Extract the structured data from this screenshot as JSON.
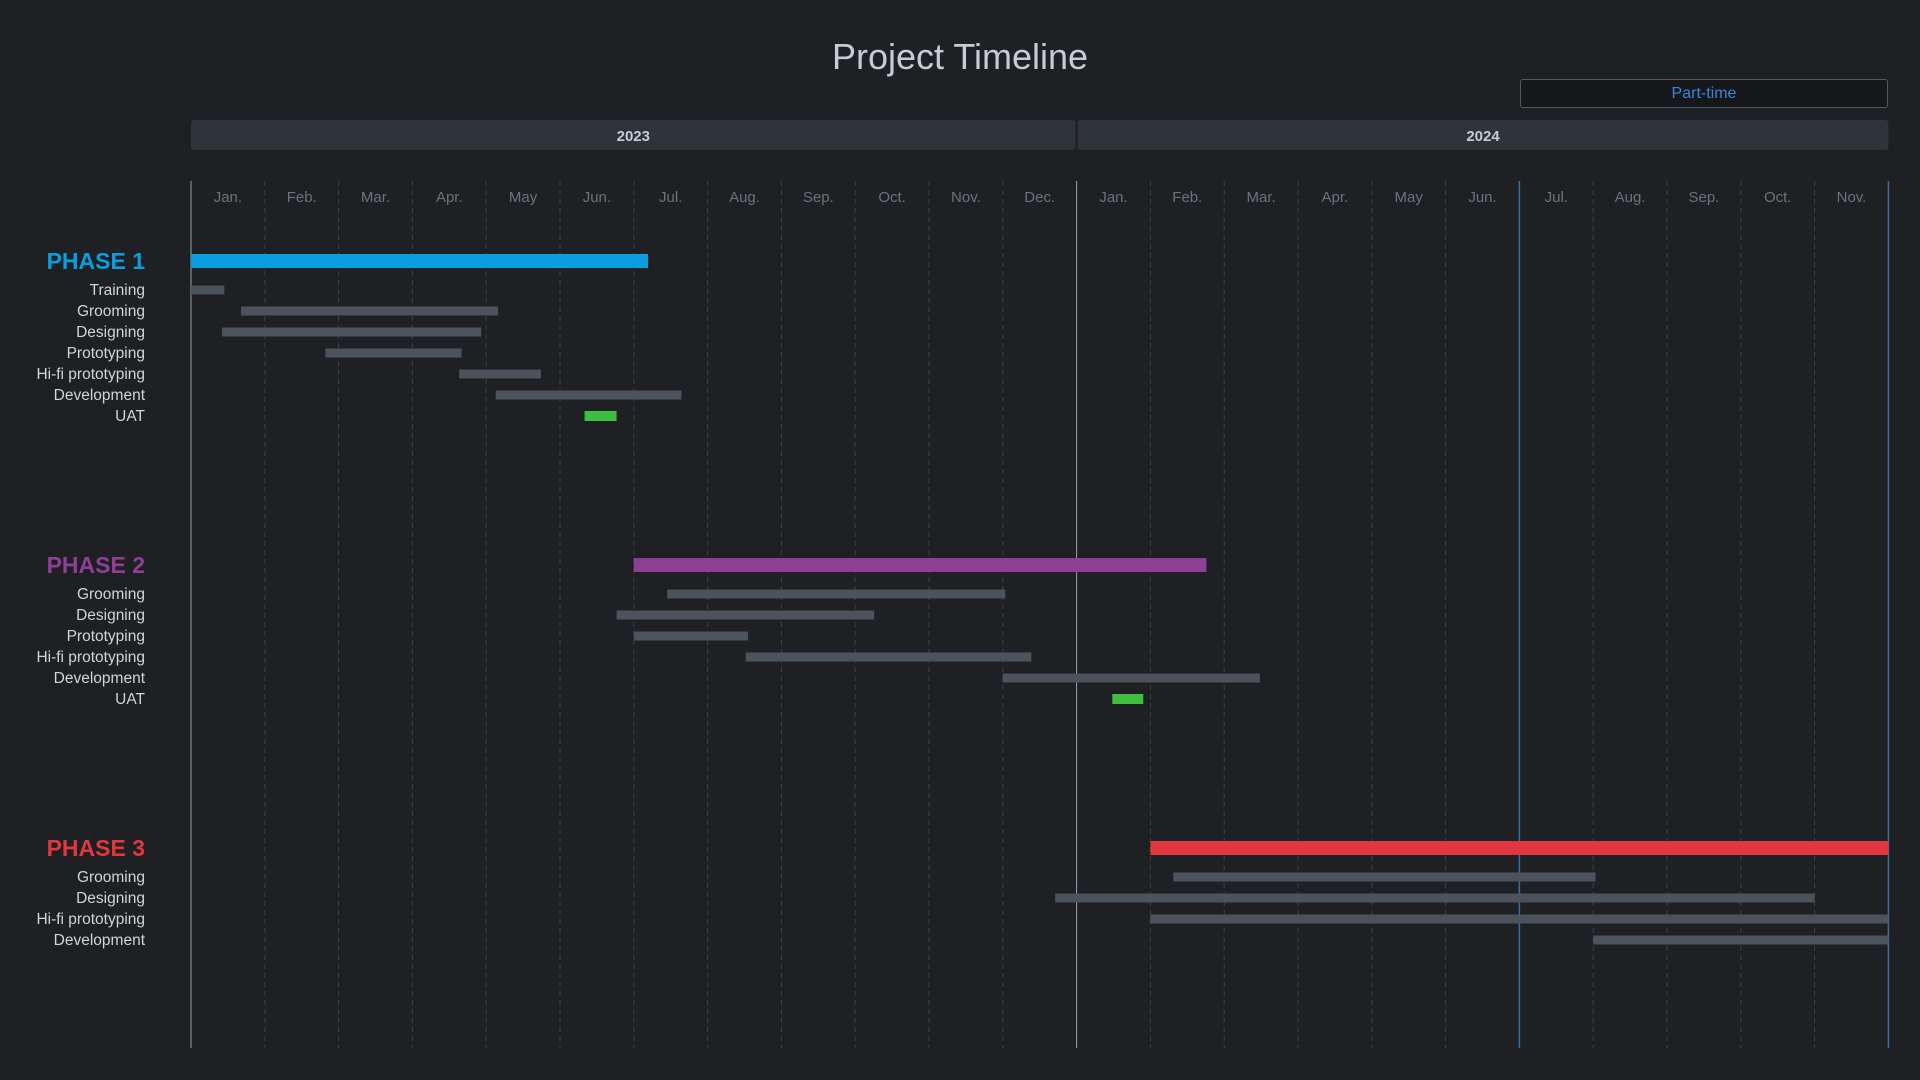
{
  "page": {
    "title": "Project Timeline",
    "badge": "Part-time"
  },
  "colors": {
    "background": "#1e2024",
    "task_bar": "#4c535c",
    "uat": "#3fbf3f",
    "grid": "#3e434a",
    "year_band": "#2f343a",
    "marker": "#3b6fa0"
  },
  "chart_data": {
    "type": "gantt",
    "title": "Project Timeline",
    "x_unit": "month",
    "x_start": "2023-01",
    "x_end": "2024-11",
    "years": [
      "2023",
      "2024"
    ],
    "months": [
      "Jan.",
      "Feb.",
      "Mar.",
      "Apr.",
      "May",
      "Jun.",
      "Jul.",
      "Aug.",
      "Sep.",
      "Oct.",
      "Nov.",
      "Dec.",
      "Jan.",
      "Feb.",
      "Mar.",
      "Apr.",
      "May",
      "Jun.",
      "Jul.",
      "Aug.",
      "Sep.",
      "Oct.",
      "Nov."
    ],
    "markers": [
      {
        "name": "Part-time",
        "start": "2024-07-01",
        "end": "2024-11-30"
      }
    ],
    "phases": [
      {
        "name": "PHASE 1",
        "color": "#0a9de0",
        "start": "2023-01-01",
        "end": "2023-07-06",
        "tasks": [
          {
            "name": "Training",
            "start": "2023-01-01",
            "end": "2023-01-14",
            "uat": false
          },
          {
            "name": "Grooming",
            "start": "2023-01-22",
            "end": "2023-05-05",
            "uat": false
          },
          {
            "name": "Designing",
            "start": "2023-01-14",
            "end": "2023-04-28",
            "uat": false
          },
          {
            "name": "Prototyping",
            "start": "2023-02-24",
            "end": "2023-04-20",
            "uat": false
          },
          {
            "name": "Hi-fi prototyping",
            "start": "2023-04-20",
            "end": "2023-05-23",
            "uat": false
          },
          {
            "name": "Development",
            "start": "2023-05-05",
            "end": "2023-07-20",
            "uat": false
          },
          {
            "name": "UAT",
            "start": "2023-06-11",
            "end": "2023-06-23",
            "uat": true
          }
        ]
      },
      {
        "name": "PHASE 2",
        "color": "#8e3f96",
        "start": "2023-07-01",
        "end": "2024-02-22",
        "tasks": [
          {
            "name": "Grooming",
            "start": "2023-07-15",
            "end": "2023-12-01",
            "uat": false
          },
          {
            "name": "Designing",
            "start": "2023-06-24",
            "end": "2023-10-08",
            "uat": false
          },
          {
            "name": "Prototyping",
            "start": "2023-07-01",
            "end": "2023-08-17",
            "uat": false
          },
          {
            "name": "Hi-fi prototyping",
            "start": "2023-08-17",
            "end": "2023-12-12",
            "uat": false
          },
          {
            "name": "Development",
            "start": "2023-12-01",
            "end": "2024-03-15",
            "uat": false
          },
          {
            "name": "UAT",
            "start": "2024-01-16",
            "end": "2024-01-28",
            "uat": true
          }
        ]
      },
      {
        "name": "PHASE 3",
        "color": "#e0383e",
        "start": "2024-02-01",
        "end": "2024-11-30",
        "tasks": [
          {
            "name": "Grooming",
            "start": "2024-02-10",
            "end": "2024-08-01",
            "uat": false
          },
          {
            "name": "Designing",
            "start": "2023-12-23",
            "end": "2024-10-31",
            "uat": false
          },
          {
            "name": "Hi-fi prototyping",
            "start": "2024-02-01",
            "end": "2024-11-30",
            "uat": false
          },
          {
            "name": "Development",
            "start": "2024-08-01",
            "end": "2024-11-30",
            "uat": false
          }
        ]
      }
    ]
  }
}
